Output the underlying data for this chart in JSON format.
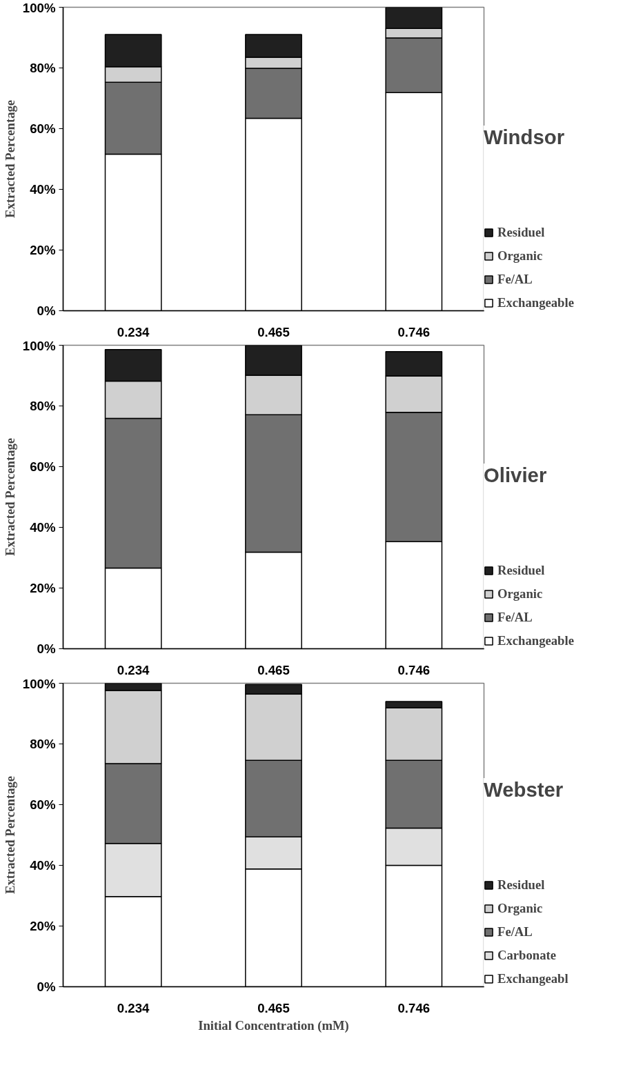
{
  "chart_data": [
    {
      "type": "bar",
      "stacked": true,
      "title": "Windsor",
      "ylabel": "Extracted Percentage",
      "categories": [
        "0.234",
        "0.465",
        "0.746"
      ],
      "ylim": [
        0,
        100
      ],
      "yticks": [
        {
          "value": 0,
          "label": "0%"
        },
        {
          "value": 20,
          "label": "20%"
        },
        {
          "value": 40,
          "label": "40%"
        },
        {
          "value": 60,
          "label": "60%"
        },
        {
          "value": 80,
          "label": "80%"
        },
        {
          "value": 100,
          "label": "100%"
        }
      ],
      "grid": false,
      "legend": "right",
      "series": [
        {
          "name": "Exchangeable",
          "color": "#ffffff",
          "values": [
            51.6,
            63.4,
            71.9
          ]
        },
        {
          "name": "Fe/AL",
          "color": "#707070",
          "values": [
            23.7,
            16.5,
            18.0
          ]
        },
        {
          "name": "Organic",
          "color": "#d0d0d0",
          "values": [
            5.1,
            3.6,
            3.1
          ]
        },
        {
          "name": "Residuel",
          "color": "#202020",
          "values": [
            10.6,
            7.5,
            7.0
          ]
        }
      ]
    },
    {
      "type": "bar",
      "stacked": true,
      "title": "Olivier",
      "ylabel": "Extracted Percentage",
      "categories": [
        "0.234",
        "0.465",
        "0.746"
      ],
      "ylim": [
        0,
        100
      ],
      "yticks": [
        {
          "value": 0,
          "label": "0%"
        },
        {
          "value": 20,
          "label": "20%"
        },
        {
          "value": 40,
          "label": "40%"
        },
        {
          "value": 60,
          "label": "60%"
        },
        {
          "value": 80,
          "label": "80%"
        },
        {
          "value": 100,
          "label": "100%"
        }
      ],
      "grid": false,
      "legend": "right",
      "series": [
        {
          "name": "Exchangeable",
          "color": "#ffffff",
          "values": [
            26.6,
            31.8,
            35.3
          ]
        },
        {
          "name": "Fe/AL",
          "color": "#707070",
          "values": [
            49.3,
            45.3,
            42.6
          ]
        },
        {
          "name": "Organic",
          "color": "#d0d0d0",
          "values": [
            12.3,
            13.0,
            12.0
          ]
        },
        {
          "name": "Residuel",
          "color": "#202020",
          "values": [
            10.4,
            9.9,
            8.0
          ]
        }
      ]
    },
    {
      "type": "bar",
      "stacked": true,
      "title": "Webster",
      "ylabel": "Extracted Percentage",
      "xlabel": "Initial Concentration (mM)",
      "categories": [
        "0.234",
        "0.465",
        "0.746"
      ],
      "ylim": [
        0,
        100
      ],
      "yticks": [
        {
          "value": 0,
          "label": "0%"
        },
        {
          "value": 20,
          "label": "20%"
        },
        {
          "value": 40,
          "label": "40%"
        },
        {
          "value": 60,
          "label": "60%"
        },
        {
          "value": 80,
          "label": "80%"
        },
        {
          "value": 100,
          "label": "100%"
        }
      ],
      "grid": false,
      "legend": "right",
      "series": [
        {
          "name": "Exchangeabl",
          "color": "#ffffff",
          "values": [
            29.7,
            38.8,
            40.0
          ]
        },
        {
          "name": "Carbonate",
          "color": "#e0e0e0",
          "values": [
            17.5,
            10.6,
            12.3
          ]
        },
        {
          "name": "Fe/AL",
          "color": "#707070",
          "values": [
            26.3,
            25.2,
            22.3
          ]
        },
        {
          "name": "Organic",
          "color": "#d0d0d0",
          "values": [
            24.1,
            21.8,
            17.3
          ]
        },
        {
          "name": "Residuel",
          "color": "#202020",
          "values": [
            2.4,
            3.2,
            2.1
          ]
        }
      ]
    }
  ]
}
